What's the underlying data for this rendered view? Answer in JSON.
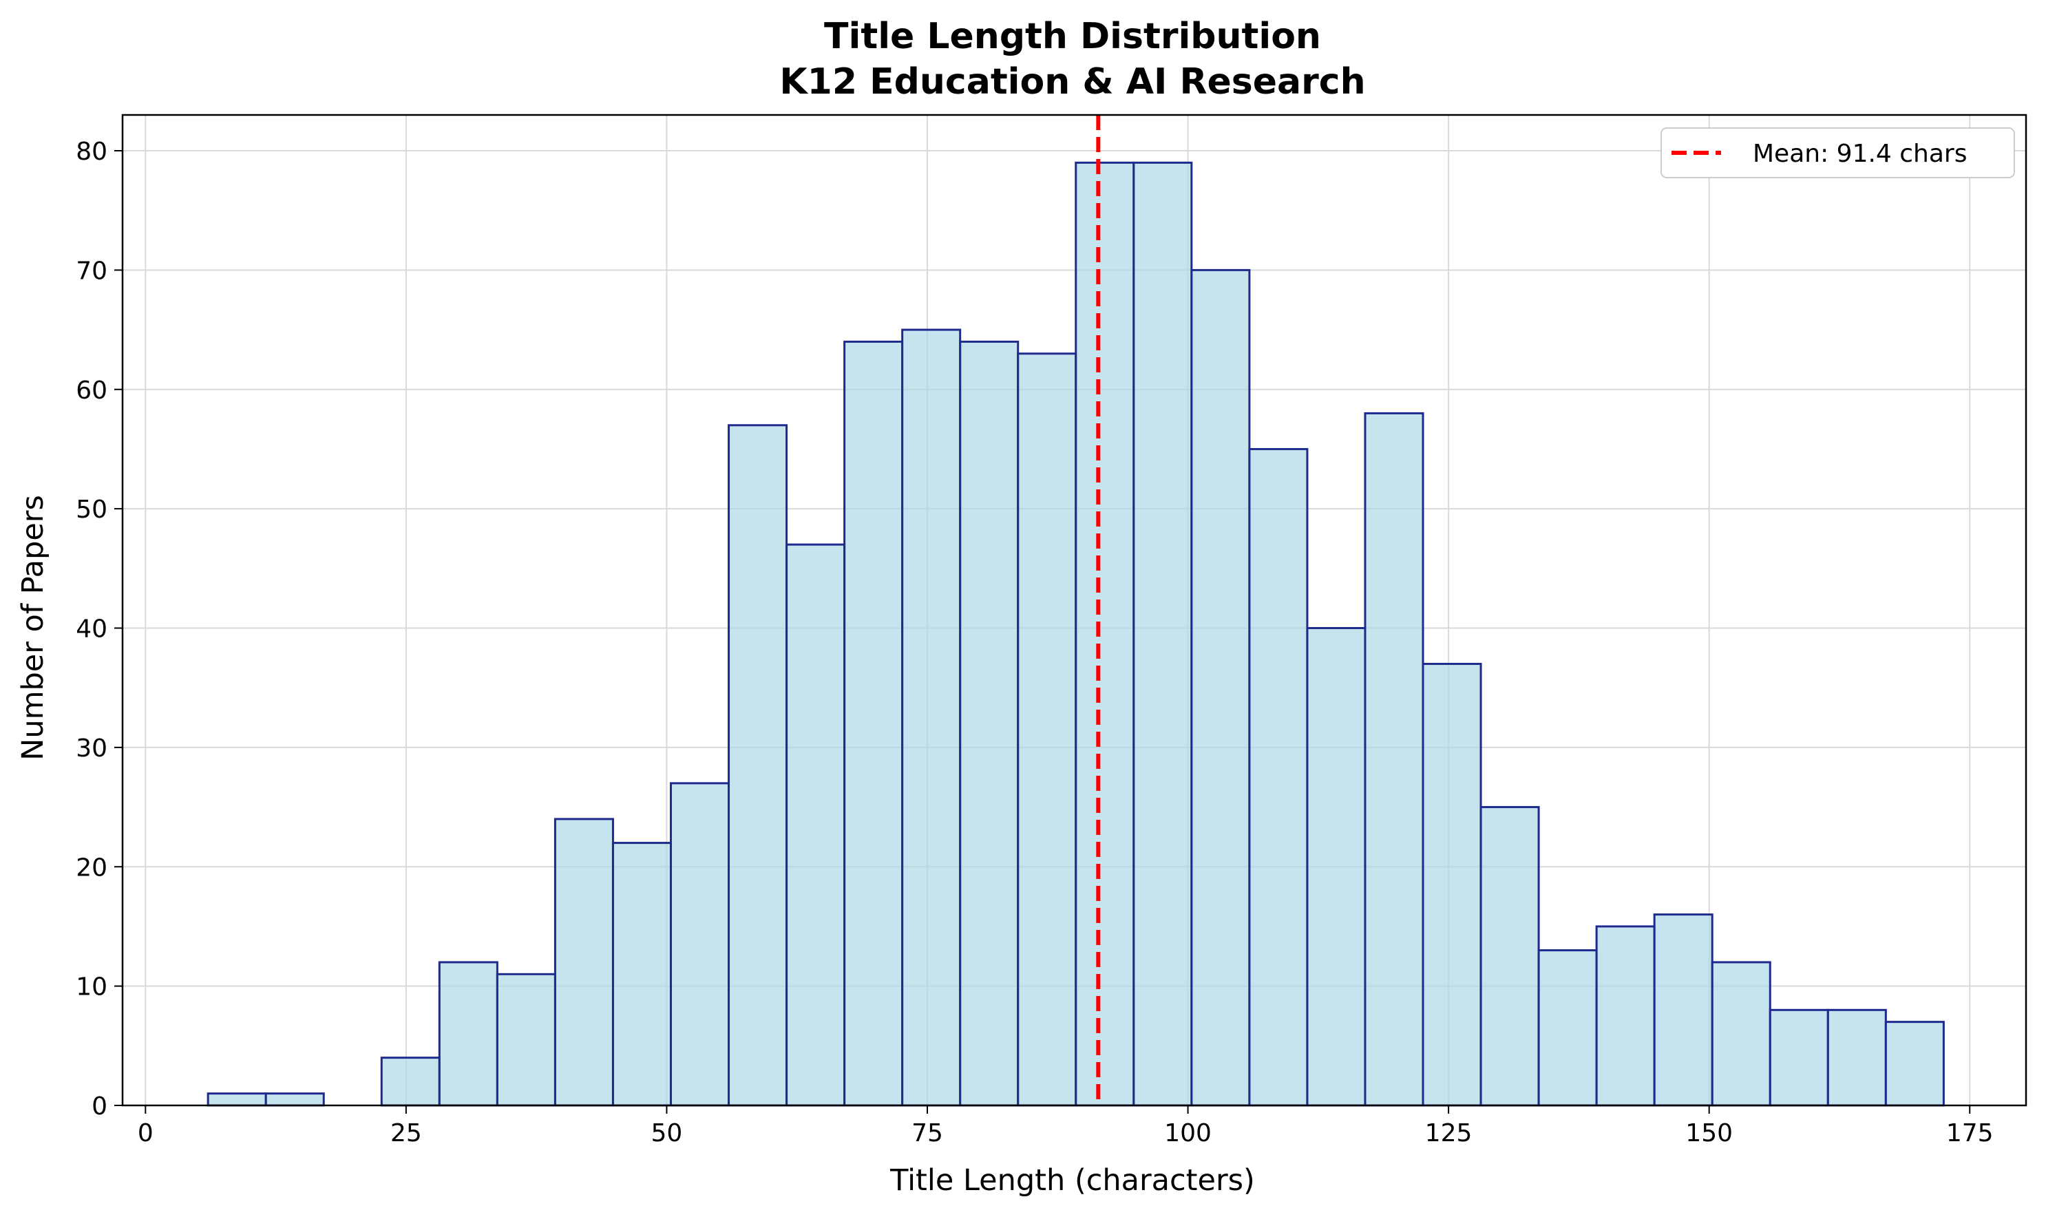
{
  "chart_data": {
    "type": "bar",
    "title": "Title Length Distribution",
    "subtitle": "K12 Education & AI Research",
    "xlabel": "Title Length (characters)",
    "ylabel": "Number of Papers",
    "xlim": [
      -2.2,
      180.4
    ],
    "ylim": [
      0,
      83
    ],
    "xticks": [
      0,
      25,
      50,
      75,
      100,
      125,
      150,
      175
    ],
    "yticks": [
      0,
      10,
      20,
      30,
      40,
      50,
      60,
      70,
      80
    ],
    "grid": true,
    "legend_position": "top-right",
    "bin_start": 6.0,
    "bin_width": 5.55,
    "values": [
      1,
      1,
      0,
      4,
      12,
      11,
      24,
      22,
      27,
      57,
      47,
      64,
      65,
      64,
      63,
      79,
      79,
      70,
      55,
      40,
      58,
      37,
      25,
      13,
      15,
      16,
      12,
      8,
      8,
      7
    ],
    "mean": {
      "value": 91.4,
      "label": "Mean: 91.4 chars"
    },
    "colors": {
      "bar_fill": "#add8e6",
      "bar_edge": "#1f2a8f",
      "mean_line": "#ff0000",
      "grid": "#d9d9d9"
    }
  }
}
